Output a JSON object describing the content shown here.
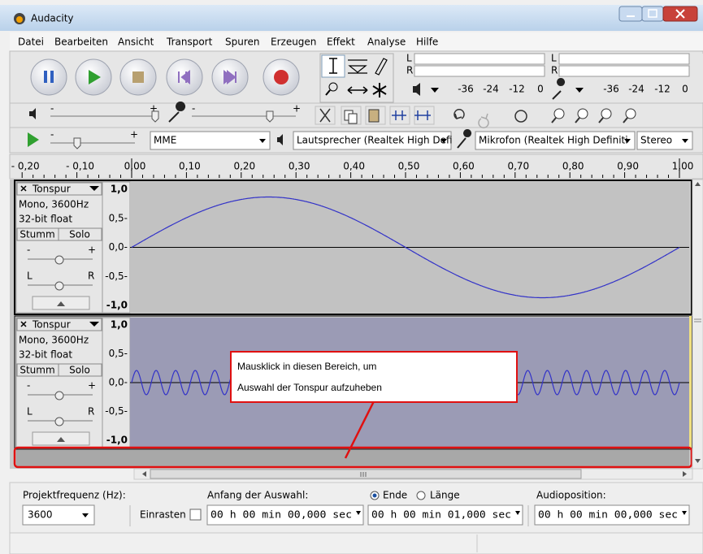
{
  "window": {
    "title": "Audacity"
  },
  "menu": [
    "Datei",
    "Bearbeiten",
    "Ansicht",
    "Transport",
    "Spuren",
    "Erzeugen",
    "Effekt",
    "Analyse",
    "Hilfe"
  ],
  "meters": {
    "playback_channels": [
      "L",
      "R"
    ],
    "record_channels": [
      "L",
      "R"
    ],
    "playback_scale": [
      "-36",
      "-24",
      "-12",
      "0"
    ],
    "record_scale": [
      "-36",
      "-24",
      "-12",
      "0"
    ]
  },
  "mixer": {
    "output_slider": [
      "-",
      "+"
    ],
    "input_slider": [
      "-",
      "+"
    ]
  },
  "speed": {
    "slider": [
      "-",
      "+"
    ]
  },
  "devices": {
    "host": "MME",
    "output": "Lautsprecher (Realtek High Defi",
    "input": "Mikrofon (Realtek High Definiti",
    "channels": "Stereo"
  },
  "timeline": [
    "- 0,20",
    "- 0,10",
    "0,00",
    "0,10",
    "0,20",
    "0,30",
    "0,40",
    "0,50",
    "0,60",
    "0,70",
    "0,80",
    "0,90",
    "1,00"
  ],
  "tracks": [
    {
      "name": "Tonspur",
      "format": [
        "Mono, 3600Hz",
        "32-bit float"
      ],
      "mute": "Stumm",
      "solo": "Solo",
      "gain": [
        "-",
        "+"
      ],
      "pan": [
        "L",
        "R"
      ],
      "scale": [
        "1,0",
        "0,5-",
        "0,0-",
        "-0,5-",
        "-1,0"
      ]
    },
    {
      "name": "Tonspur",
      "format": [
        "Mono, 3600Hz",
        "32-bit float"
      ],
      "mute": "Stumm",
      "solo": "Solo",
      "gain": [
        "-",
        "+"
      ],
      "pan": [
        "L",
        "R"
      ],
      "scale": [
        "1,0",
        "0,5-",
        "0,0-",
        "-0,5-",
        "-1,0"
      ]
    }
  ],
  "annotation": [
    "Mausklick in diesen Bereich, um",
    "Auswahl der Tonspur aufzuheben"
  ],
  "selection": {
    "rate_label": "Projektfrequenz (Hz):",
    "rate": "3600",
    "snap": "Einrasten",
    "start_label": "Anfang der Auswahl:",
    "end_option": "Ende",
    "length_option": "Länge",
    "position_label": "Audioposition:",
    "start": "00 h 00 min 00,000 sec",
    "end": "00 h 00 min 01,000 sec",
    "position": "00 h 00 min 00,000 sec"
  }
}
